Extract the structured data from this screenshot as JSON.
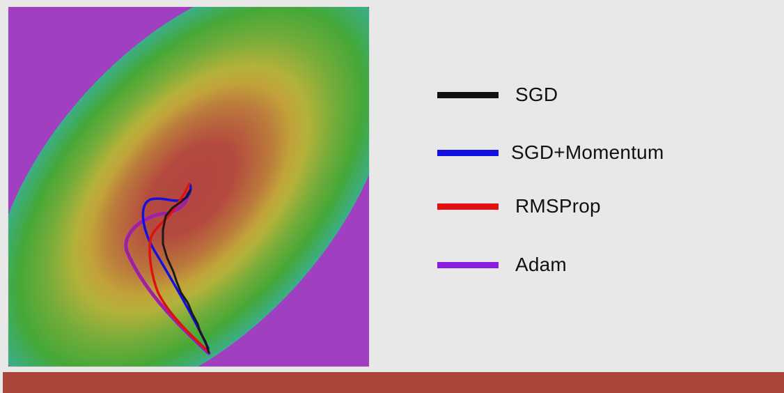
{
  "figure": {
    "colors": {
      "background": "#e8e8e8",
      "footer_bar": "#aa4638",
      "loss_center": "#b34540",
      "loss_mid": "#c8a838",
      "loss_green": "#44a838",
      "loss_cyan": "#38b0b8",
      "loss_blue": "#4848c0",
      "loss_purple": "#a040c0"
    }
  },
  "legend": {
    "items": [
      {
        "key": "sgd",
        "label": "SGD",
        "color": "#111111"
      },
      {
        "key": "sgd_momentum",
        "label": "SGD+Momentum",
        "color": "#1010e0"
      },
      {
        "key": "rmsprop",
        "label": "RMSProp",
        "color": "#e01010"
      },
      {
        "key": "adam",
        "label": "Adam",
        "color": "#8a1ee0"
      }
    ]
  }
}
